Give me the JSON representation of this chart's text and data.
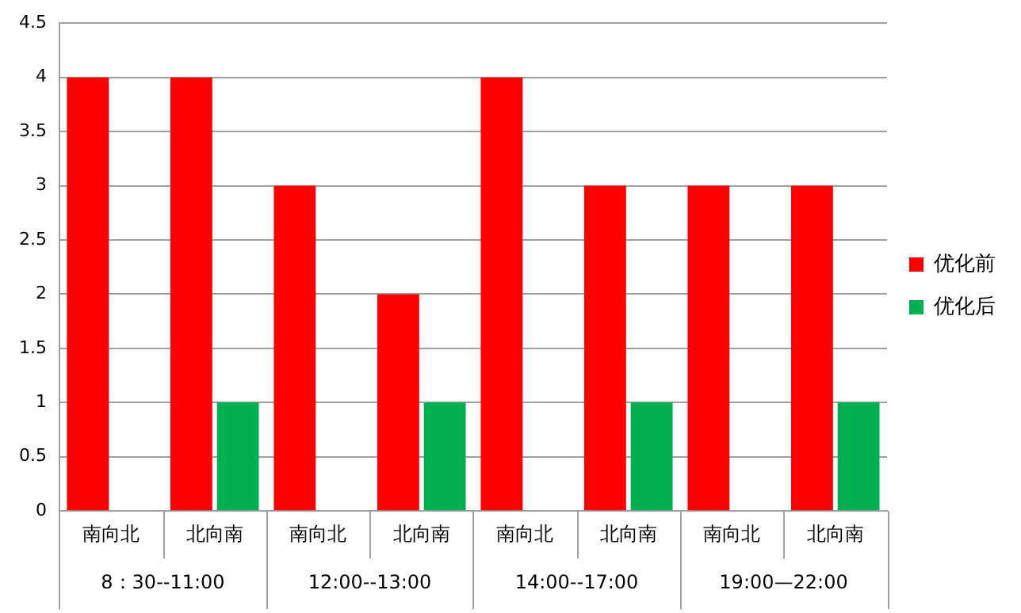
{
  "chart_data": {
    "type": "bar",
    "categories": [
      "南向北",
      "北向南",
      "南向北",
      "北向南",
      "南向北",
      "北向南",
      "南向北",
      "北向南"
    ],
    "series": [
      {
        "name": "优化前",
        "color": "#ff0000",
        "values": [
          4,
          4,
          3,
          2,
          4,
          3,
          3,
          3
        ]
      },
      {
        "name": "优化后",
        "color": "#00b050",
        "values": [
          0,
          1,
          0,
          1,
          0,
          1,
          0,
          1
        ]
      }
    ],
    "ylim": [
      0,
      4.5
    ],
    "yticks": [
      0,
      0.5,
      1,
      1.5,
      2,
      2.5,
      3,
      3.5,
      4,
      4.5
    ],
    "grid": "y",
    "legend": "right",
    "annotations": [
      "8：30--11:00",
      "12:00--13:00",
      "14:00--17:00",
      "19:00—22:00"
    ]
  }
}
